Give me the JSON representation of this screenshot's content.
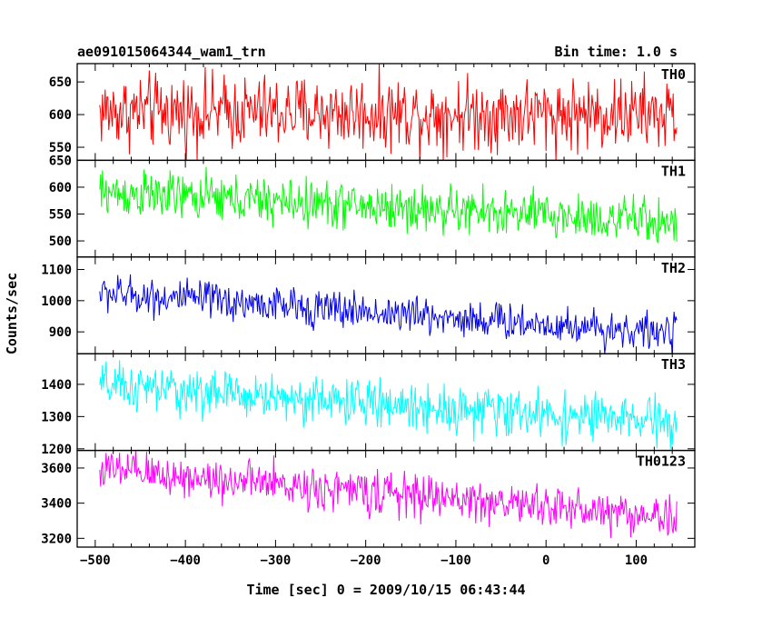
{
  "header": {
    "title": "ae091015064344_wam1_trn",
    "bin_time": "Bin time: 1.0 s"
  },
  "axes": {
    "xlabel": "Time [sec] 0 = 2009/10/15 06:43:44",
    "ylabel": "Counts/sec"
  },
  "chart_data": {
    "type": "line",
    "title": "ae091015064344_wam1_trn",
    "subtitle": "Bin time: 1.0 s",
    "xlabel": "Time [sec] 0 = 2009/10/15 06:43:44",
    "ylabel": "Counts/sec",
    "xlim": [
      -520,
      165
    ],
    "x_range": [
      -495,
      145
    ],
    "x_ticks": [
      -500,
      -400,
      -300,
      -200,
      -100,
      0,
      100
    ],
    "grid": false,
    "panels": [
      {
        "name": "TH0",
        "color": "#ff0000",
        "ylim": [
          530,
          678
        ],
        "y_ticks": [
          550,
          600,
          650
        ],
        "start": 605,
        "end": 600,
        "noise": 28
      },
      {
        "name": "TH1",
        "color": "#00ff00",
        "ylim": [
          470,
          650
        ],
        "y_ticks": [
          500,
          550,
          600,
          650
        ],
        "start": 590,
        "end": 535,
        "noise": 22
      },
      {
        "name": "TH2",
        "color": "#0000ee",
        "ylim": [
          830,
          1140
        ],
        "y_ticks": [
          900,
          1000,
          1100
        ],
        "start": 1025,
        "end": 895,
        "noise": 30
      },
      {
        "name": "TH3",
        "color": "#00ffff",
        "ylim": [
          1195,
          1495
        ],
        "y_ticks": [
          1200,
          1300,
          1400
        ],
        "start": 1395,
        "end": 1280,
        "noise": 36
      },
      {
        "name": "TH0123",
        "color": "#ff00ff",
        "ylim": [
          3150,
          3700
        ],
        "y_ticks": [
          3200,
          3400,
          3600
        ],
        "start": 3590,
        "end": 3320,
        "noise": 60
      }
    ]
  }
}
